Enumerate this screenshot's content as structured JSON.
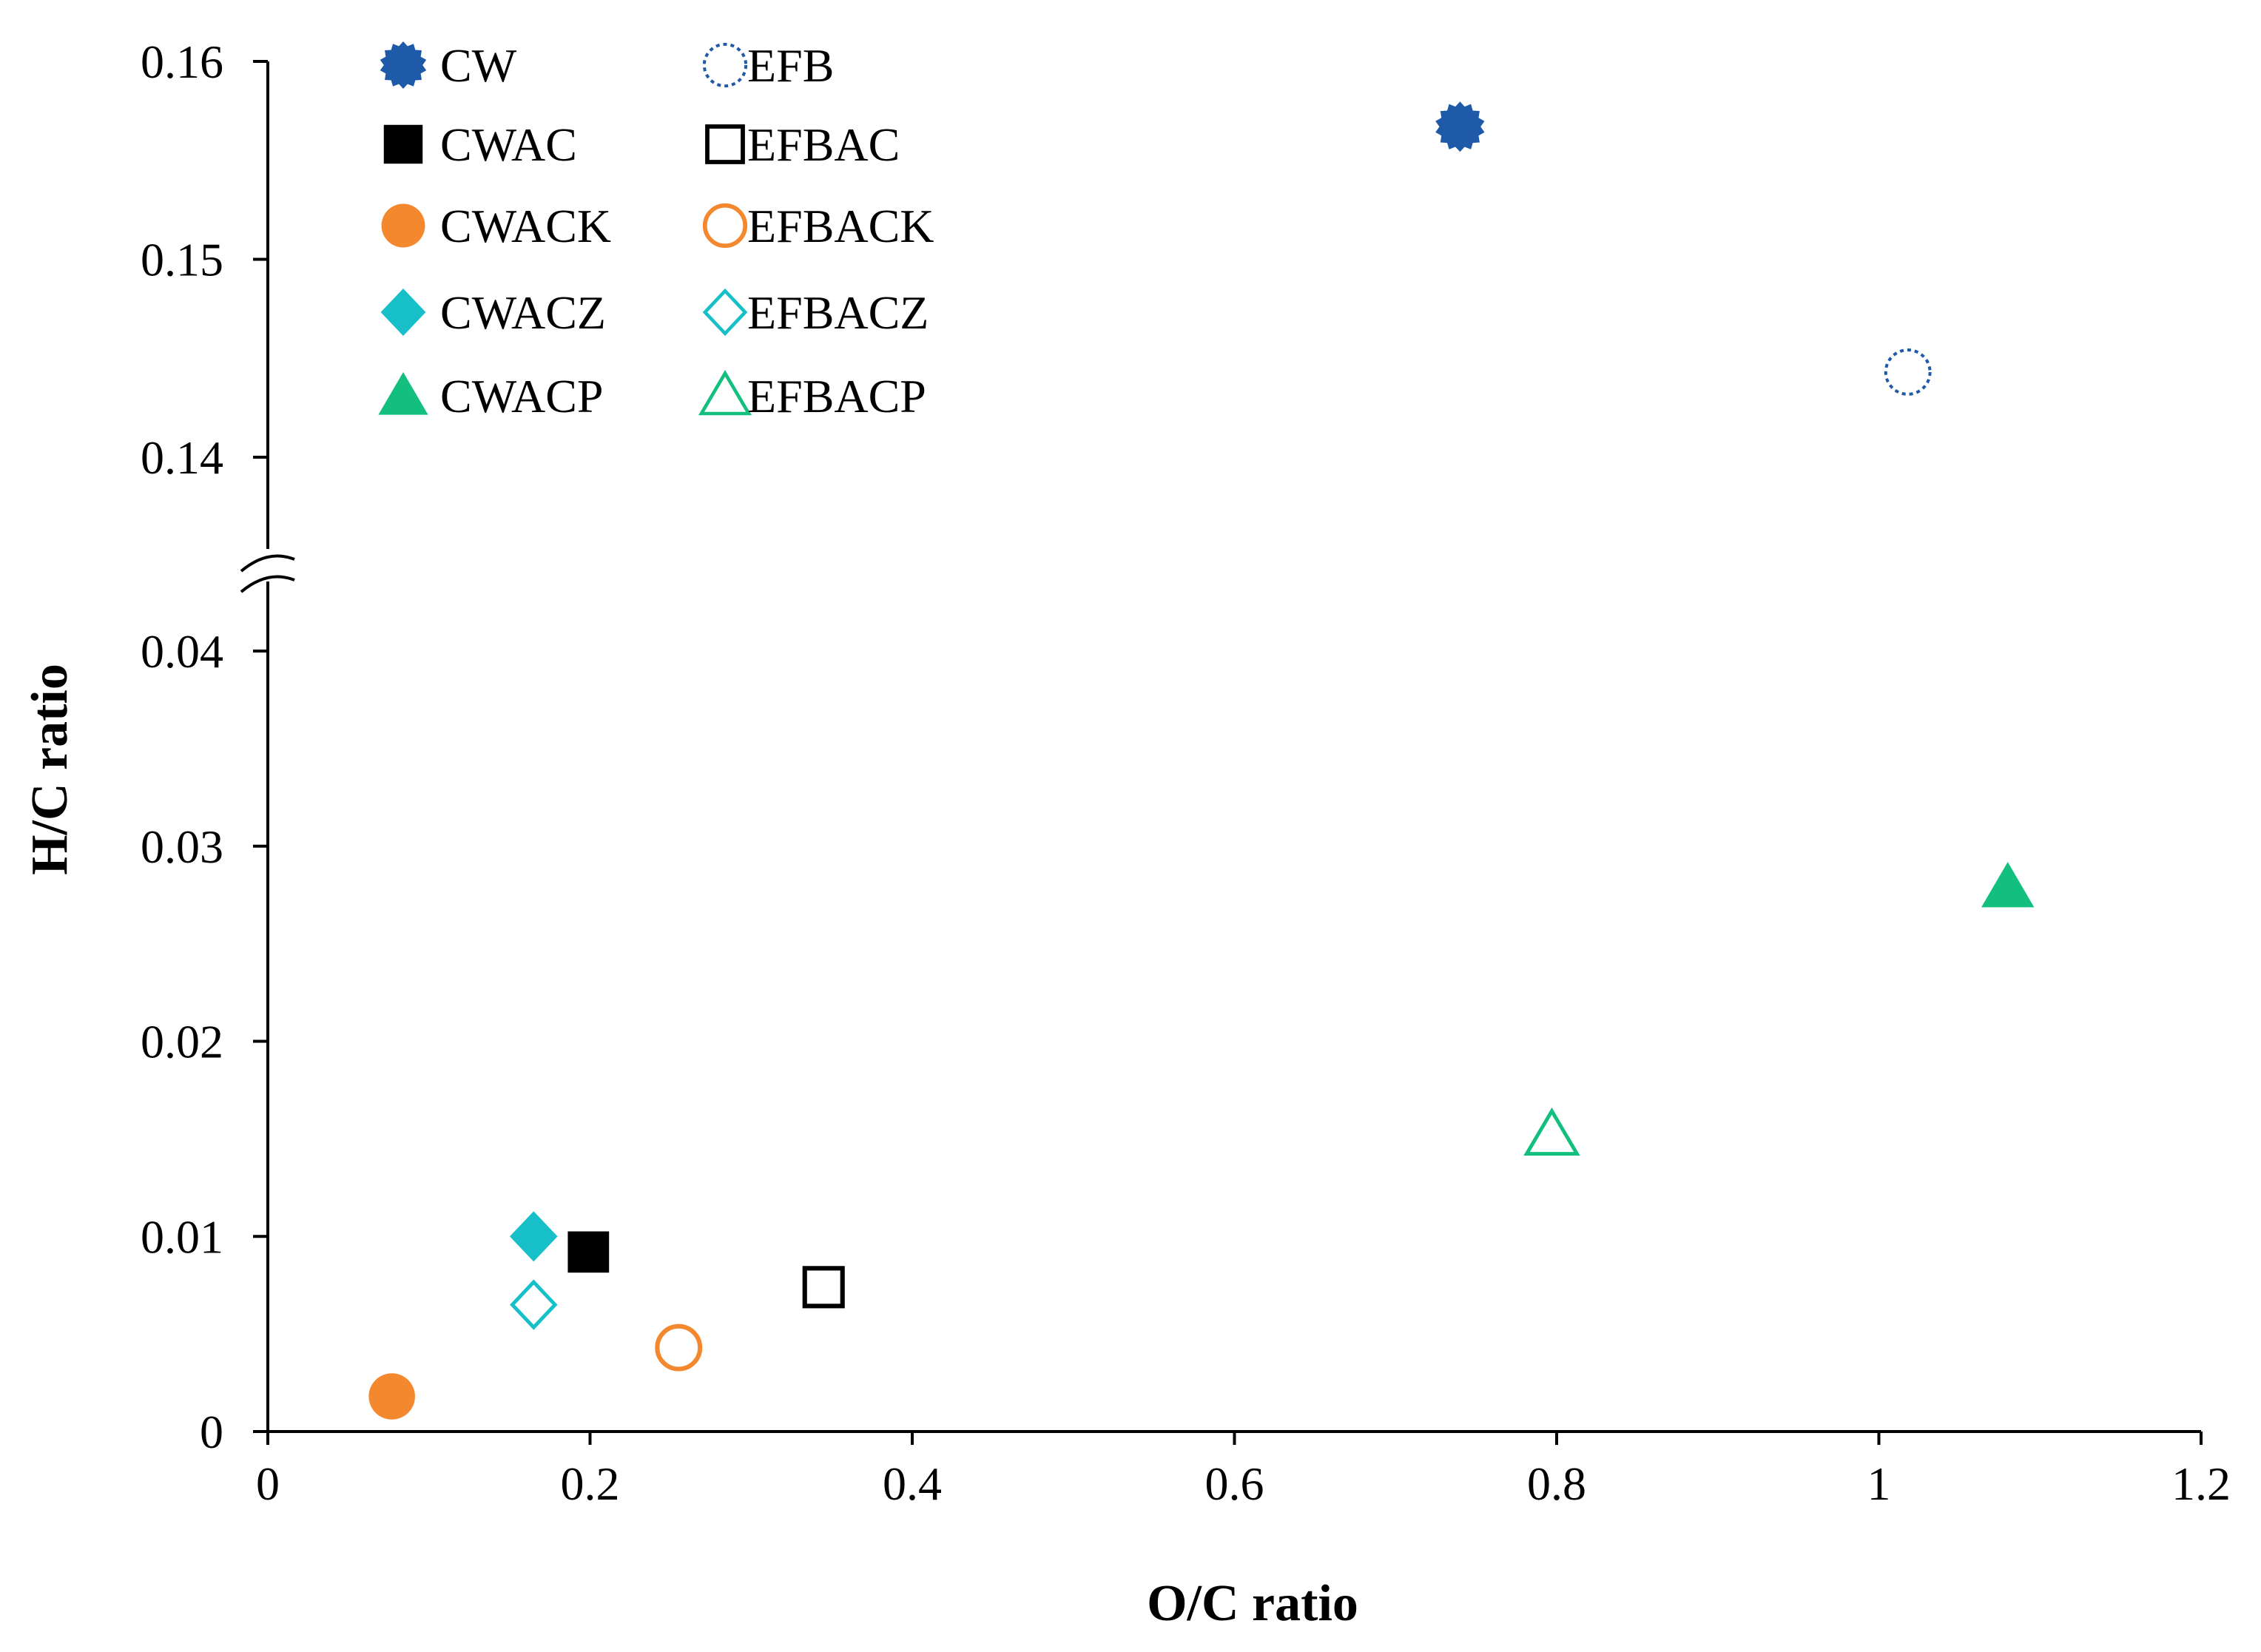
{
  "chart_data": {
    "type": "scatter",
    "title": "",
    "xlabel": "O/C ratio",
    "ylabel": "H/C ratio",
    "xlim": [
      0,
      1.2
    ],
    "xticks": [
      "0",
      "0.2",
      "0.4",
      "0.6",
      "0.8",
      "1",
      "1.2"
    ],
    "y_axis_break": {
      "lower_range": [
        0,
        0.04
      ],
      "upper_range": [
        0.14,
        0.16
      ]
    },
    "yticks_lower": [
      "0",
      "0.01",
      "0.02",
      "0.03",
      "0.04"
    ],
    "yticks_upper": [
      "0.14",
      "0.15",
      "0.16"
    ],
    "legend_position": "top-left",
    "series": [
      {
        "name": "CW",
        "marker": "starburst-filled",
        "color": "#1f5aa8",
        "points": [
          {
            "x": 0.74,
            "y": 0.1567
          }
        ]
      },
      {
        "name": "EFB",
        "marker": "circle-dotted",
        "color": "#1f5aa8",
        "points": [
          {
            "x": 1.018,
            "y": 0.1443
          }
        ]
      },
      {
        "name": "CWAC",
        "marker": "square-filled",
        "color": "#000000",
        "points": [
          {
            "x": 0.199,
            "y": 0.0092
          }
        ]
      },
      {
        "name": "EFBAC",
        "marker": "square-open",
        "color": "#000000",
        "points": [
          {
            "x": 0.345,
            "y": 0.0074
          }
        ]
      },
      {
        "name": "CWACK",
        "marker": "circle-filled",
        "color": "#f4882f",
        "points": [
          {
            "x": 0.077,
            "y": 0.0018
          }
        ]
      },
      {
        "name": "EFBACK",
        "marker": "circle-open",
        "color": "#f4882f",
        "points": [
          {
            "x": 0.255,
            "y": 0.0043
          }
        ]
      },
      {
        "name": "CWACZ",
        "marker": "diamond-filled",
        "color": "#17bfc9",
        "points": [
          {
            "x": 0.165,
            "y": 0.01
          }
        ]
      },
      {
        "name": "EFBACZ",
        "marker": "diamond-open",
        "color": "#17bfc9",
        "points": [
          {
            "x": 0.165,
            "y": 0.0065
          }
        ]
      },
      {
        "name": "CWACP",
        "marker": "triangle-filled",
        "color": "#13bf7f",
        "points": [
          {
            "x": 1.08,
            "y": 0.0279
          }
        ]
      },
      {
        "name": "EFBACP",
        "marker": "triangle-open",
        "color": "#13bf7f",
        "points": [
          {
            "x": 0.797,
            "y": 0.0152
          }
        ]
      }
    ]
  }
}
